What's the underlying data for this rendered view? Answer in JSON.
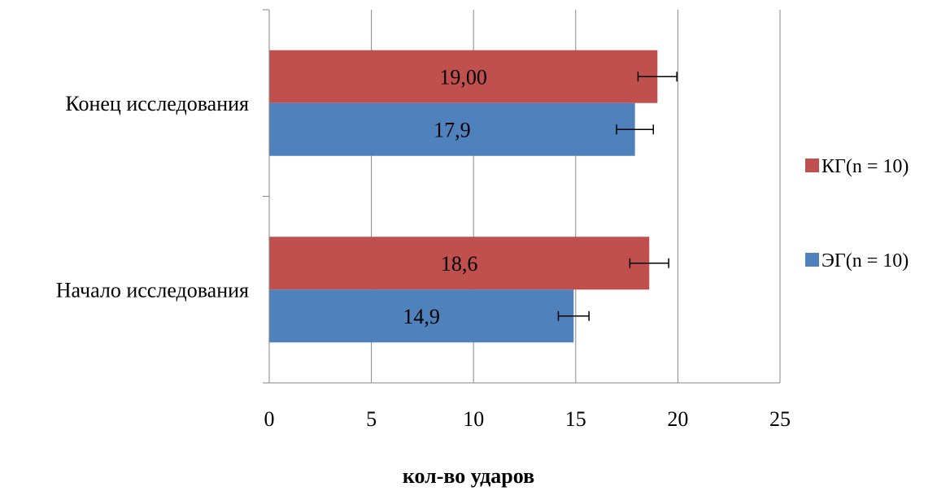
{
  "chart_data": {
    "type": "bar",
    "orientation": "horizontal",
    "title": "",
    "xlabel": "кол-во ударов",
    "ylabel": "",
    "xlim": [
      0,
      25
    ],
    "xticks": [
      "0",
      "5",
      "10",
      "15",
      "20",
      "25"
    ],
    "grid": true,
    "legend_position": "right",
    "categories": [
      "Конец исследования",
      "Начало исследования"
    ],
    "series": [
      {
        "name": "КГ(n = 10)",
        "color": "#c0504d",
        "values": [
          19.0,
          18.6
        ],
        "labels": [
          "19,00",
          "18,6"
        ],
        "errors": [
          0.95,
          0.95
        ]
      },
      {
        "name": "ЭГ(n = 10)",
        "color": "#4f81bd",
        "values": [
          17.9,
          14.9
        ],
        "labels": [
          "17,9",
          "14,9"
        ],
        "errors": [
          0.9,
          0.75
        ]
      }
    ]
  }
}
